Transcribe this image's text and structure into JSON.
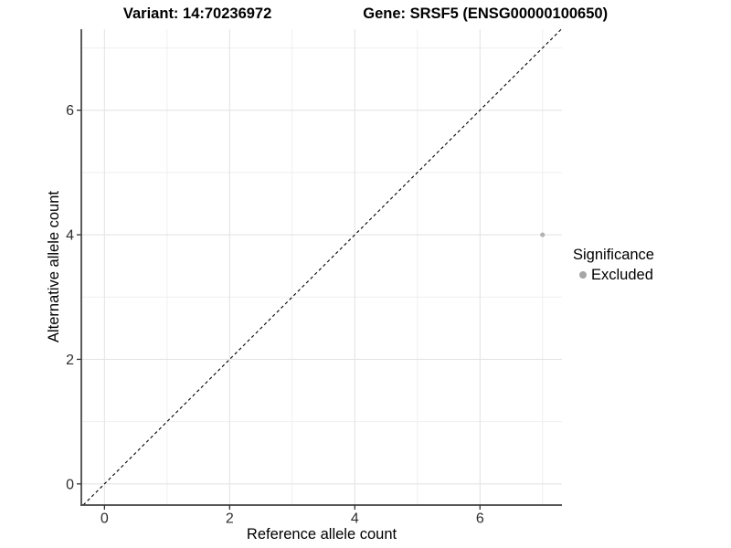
{
  "titles": {
    "variant": "Variant: 14:70236972",
    "gene": "Gene: SRSF5 (ENSG00000100650)"
  },
  "chart_data": {
    "type": "scatter",
    "xlabel": "Reference allele count",
    "ylabel": "Alternative allele count",
    "xlim": [
      -0.37,
      7.31
    ],
    "ylim": [
      -0.34,
      7.3
    ],
    "x_major_ticks": [
      0,
      2,
      4,
      6
    ],
    "x_minor_ticks": [
      1,
      3,
      5,
      7
    ],
    "y_major_ticks": [
      0,
      2,
      4,
      6
    ],
    "y_minor_ticks": [
      1,
      3,
      5,
      7
    ],
    "grid": true,
    "grid_major_color": "#e4e4e4",
    "grid_minor_color": "#efefef",
    "axis_line_color": "#404040",
    "identity_line": {
      "style": "dashed",
      "color": "#000000",
      "slope": 1,
      "intercept": 0
    },
    "point_color": "#b3b3b3",
    "points": [
      {
        "x": 7,
        "y": 4,
        "series": "Excluded"
      }
    ],
    "legend": {
      "position": "right",
      "title": "Significance",
      "entries": [
        {
          "label": "Excluded",
          "color": "#a6a6a6"
        }
      ]
    }
  }
}
